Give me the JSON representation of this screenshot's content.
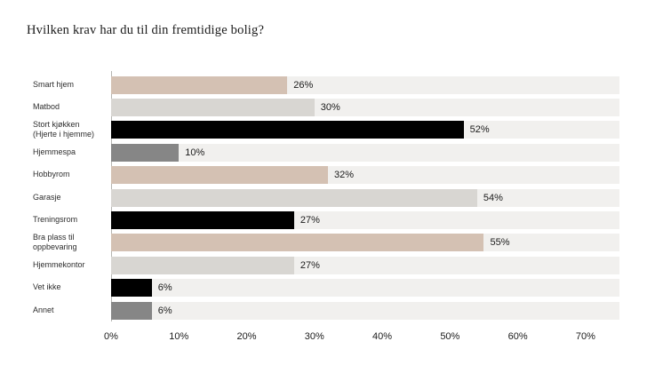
{
  "page": {
    "title": "Hvilken krav har du til din fremtidige bolig?"
  },
  "colors": {
    "tan": "#d4c1b3",
    "light_gray": "#d8d6d2",
    "black": "#000000",
    "gray": "#868686",
    "track": "#f1f0ee",
    "axis_line": "#b5b5b2",
    "text": "#1a1a1a"
  },
  "chart_data": {
    "type": "bar",
    "orientation": "horizontal",
    "title": "Hvilken krav har du til din fremtidige bolig?",
    "categories": [
      "Smart hjem",
      "Matbod",
      "Stort kjøkken\n(Hjerte i hjemme)",
      "Hjemmespa",
      "Hobbyrom",
      "Garasje",
      "Treningsrom",
      "Bra plass til\noppbevaring",
      "Hjemmekontor",
      "Vet ikke",
      "Annet"
    ],
    "values": [
      26,
      30,
      52,
      10,
      32,
      54,
      27,
      55,
      27,
      6,
      6
    ],
    "value_labels": [
      "26%",
      "30%",
      "52%",
      "10%",
      "32%",
      "54%",
      "27%",
      "55%",
      "27%",
      "6%",
      "6%"
    ],
    "bar_colors": [
      "tan",
      "light_gray",
      "black",
      "gray",
      "tan",
      "light_gray",
      "black",
      "tan",
      "light_gray",
      "black",
      "gray"
    ],
    "x_ticks": [
      "0%",
      "10%",
      "20%",
      "30%",
      "40%",
      "50%",
      "60%",
      "70%"
    ],
    "x_tick_values": [
      0,
      10,
      20,
      30,
      40,
      50,
      60,
      70
    ],
    "xlim": [
      0,
      75
    ],
    "grid": false,
    "legend": false,
    "xlabel": "",
    "ylabel": ""
  }
}
